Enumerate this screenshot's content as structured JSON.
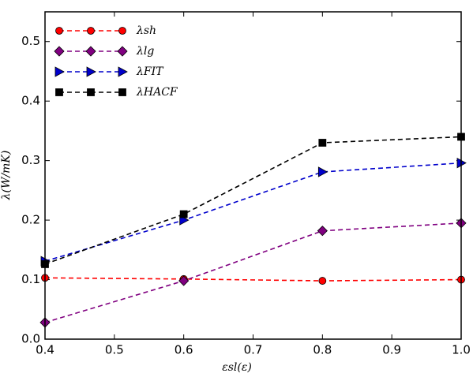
{
  "chart_data": {
    "type": "line",
    "x_label": "εsl(ε)",
    "y_label": "λ(W/mK)",
    "x": [
      0.4,
      0.6,
      0.8,
      1.0
    ],
    "series": [
      {
        "name": "λsh",
        "color": "#ff0000",
        "marker": "circle",
        "values": [
          0.103,
          0.101,
          0.098,
          0.1
        ]
      },
      {
        "name": "λlg",
        "color": "#800080",
        "marker": "diamond",
        "values": [
          0.028,
          0.098,
          0.182,
          0.195
        ]
      },
      {
        "name": "λFIT",
        "color": "#0000cc",
        "marker": "triangle-right",
        "values": [
          0.131,
          0.2,
          0.281,
          0.296
        ]
      },
      {
        "name": "λHACF",
        "color": "#000000",
        "marker": "square",
        "values": [
          0.126,
          0.21,
          0.33,
          0.34
        ]
      }
    ],
    "xlim": [
      0.4,
      1.0
    ],
    "ylim": [
      0,
      0.55
    ],
    "xticks": [
      0.4,
      0.5,
      0.6,
      0.7,
      0.8,
      0.9,
      {
        "value": 1.0,
        "label": "1.0"
      }
    ],
    "yticks": [
      {
        "value": 0,
        "label": "0.0"
      },
      0.1,
      0.2,
      0.3,
      0.4,
      0.5
    ],
    "legend": "upper left",
    "line_style": "dashed"
  }
}
